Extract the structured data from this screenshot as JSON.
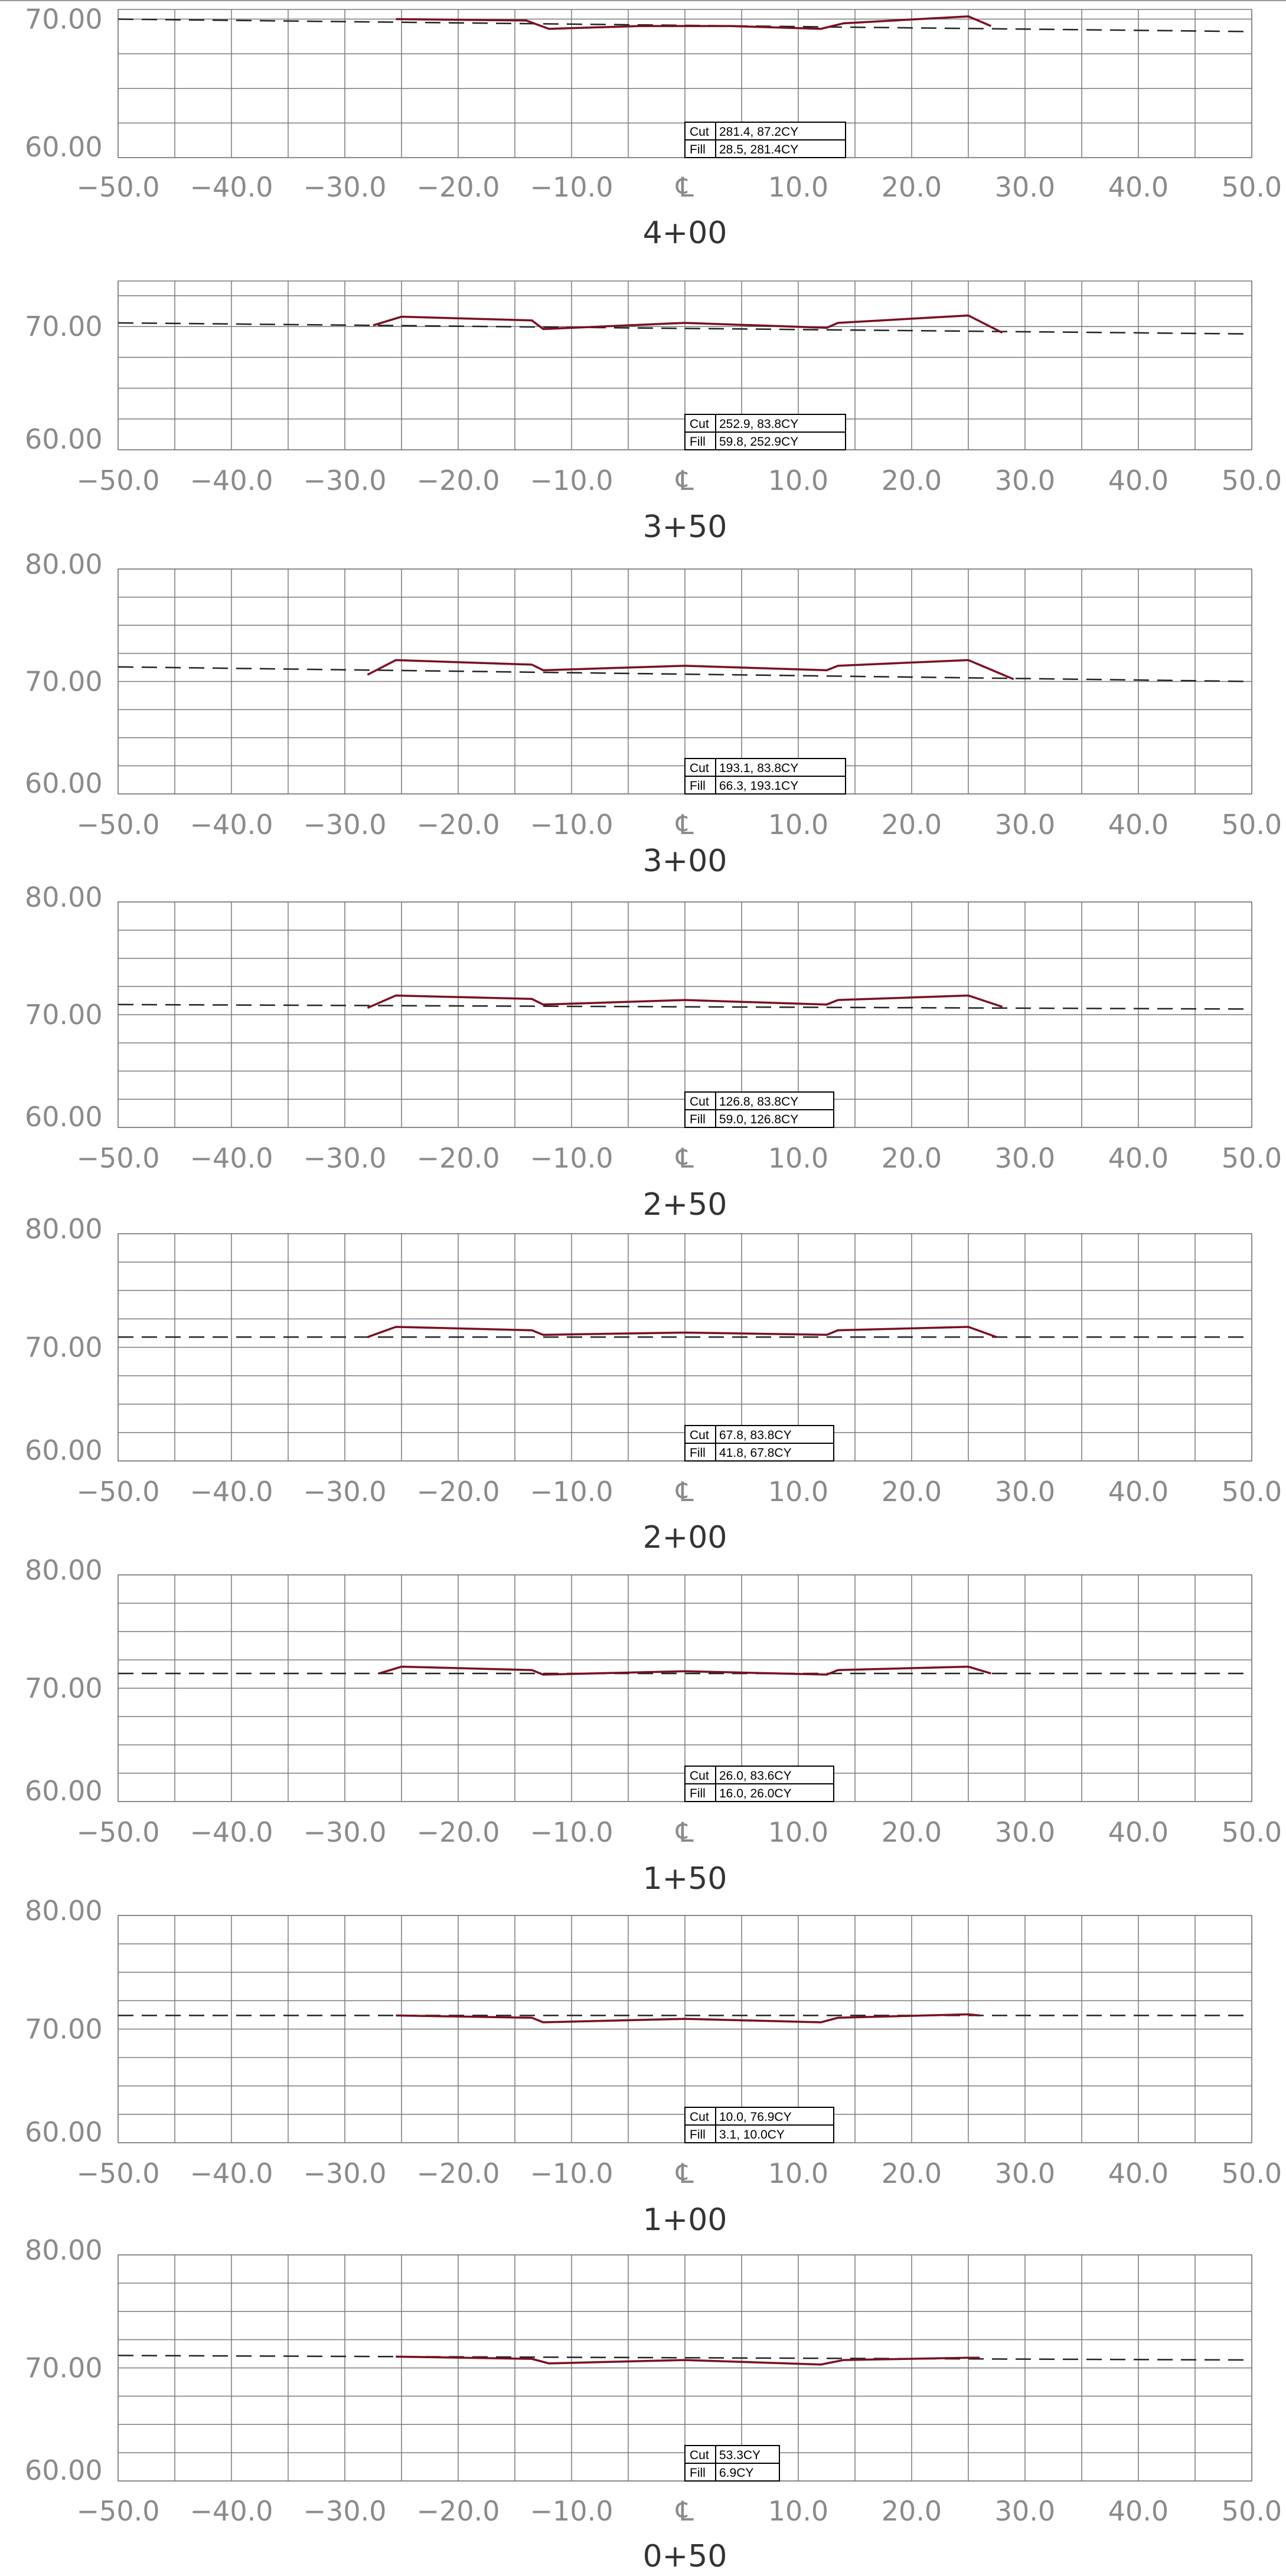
{
  "x_axis": {
    "ticks": [
      {
        "value": -50,
        "label": "−50.0"
      },
      {
        "value": -40,
        "label": "−40.0"
      },
      {
        "value": -30,
        "label": "−30.0"
      },
      {
        "value": -20,
        "label": "−20.0"
      },
      {
        "value": -10,
        "label": "−10.0"
      },
      {
        "value": 0,
        "label": "℄"
      },
      {
        "value": 10,
        "label": "10.0"
      },
      {
        "value": 20,
        "label": "20.0"
      },
      {
        "value": 30,
        "label": "30.0"
      },
      {
        "value": 40,
        "label": "40.0"
      },
      {
        "value": 50,
        "label": "50.0"
      }
    ]
  },
  "colors": {
    "grid": "#7a7a7a",
    "axis_label": "#8a8a8a",
    "design": "#7a1020",
    "existing": "#222222",
    "station_label": "#333333"
  },
  "sections": [
    {
      "station": "4+00",
      "y_ticks": [
        "70.00",
        "60.00"
      ],
      "y_range": [
        60,
        70.7
      ],
      "existing_ground": [
        [
          -50,
          70.0
        ],
        [
          50,
          69.1
        ]
      ],
      "design_profile": [
        [
          -25.5,
          70.0
        ],
        [
          -14,
          69.9
        ],
        [
          -12,
          69.3
        ],
        [
          -4,
          69.5
        ],
        [
          4,
          69.5
        ],
        [
          12,
          69.3
        ],
        [
          14,
          69.7
        ],
        [
          25,
          70.2
        ],
        [
          27,
          69.5
        ]
      ],
      "volumes": {
        "cut": {
          "label": "Cut",
          "value": "281.4, 87.2CY"
        },
        "fill": {
          "label": "Fill",
          "value": "28.5, 281.4CY"
        }
      }
    },
    {
      "station": "3+50",
      "y_ticks": [
        "70.00",
        "60.00"
      ],
      "y_range": [
        60,
        73.7
      ],
      "existing_ground": [
        [
          -50,
          70.3
        ],
        [
          50,
          69.4
        ]
      ],
      "design_profile": [
        [
          -27.5,
          70.1
        ],
        [
          -25,
          70.8
        ],
        [
          -13.5,
          70.5
        ],
        [
          -12.5,
          69.8
        ],
        [
          0,
          70.3
        ],
        [
          12.5,
          69.9
        ],
        [
          13.5,
          70.3
        ],
        [
          25,
          70.9
        ],
        [
          28,
          69.5
        ]
      ],
      "volumes": {
        "cut": {
          "label": "Cut",
          "value": "252.9, 83.8CY"
        },
        "fill": {
          "label": "Fill",
          "value": "59.8, 252.9CY"
        }
      }
    },
    {
      "station": "3+00",
      "y_ticks": [
        "80.00",
        "70.00",
        "60.00"
      ],
      "y_range": [
        60,
        80
      ],
      "existing_ground": [
        [
          -50,
          71.3
        ],
        [
          50,
          70.0
        ]
      ],
      "design_profile": [
        [
          -28,
          70.6
        ],
        [
          -25.5,
          71.9
        ],
        [
          -13.5,
          71.5
        ],
        [
          -12.5,
          71.0
        ],
        [
          0,
          71.4
        ],
        [
          12.5,
          71.0
        ],
        [
          13.5,
          71.4
        ],
        [
          25,
          71.9
        ],
        [
          29,
          70.2
        ]
      ],
      "volumes": {
        "cut": {
          "label": "Cut",
          "value": "193.1, 83.8CY"
        },
        "fill": {
          "label": "Fill",
          "value": "66.3, 193.1CY"
        }
      }
    },
    {
      "station": "2+50",
      "y_ticks": [
        "80.00",
        "70.00",
        "60.00"
      ],
      "y_range": [
        60,
        80
      ],
      "existing_ground": [
        [
          -50,
          70.9
        ],
        [
          50,
          70.5
        ]
      ],
      "design_profile": [
        [
          -28,
          70.6
        ],
        [
          -25.5,
          71.7
        ],
        [
          -13.5,
          71.4
        ],
        [
          -12.5,
          70.9
        ],
        [
          0,
          71.3
        ],
        [
          12.5,
          70.9
        ],
        [
          13.5,
          71.3
        ],
        [
          25,
          71.7
        ],
        [
          28,
          70.7
        ]
      ],
      "volumes": {
        "cut": {
          "label": "Cut",
          "value": "126.8, 83.8CY"
        },
        "fill": {
          "label": "Fill",
          "value": "59.0, 126.8CY"
        }
      }
    },
    {
      "station": "2+00",
      "y_ticks": [
        "80.00",
        "70.00",
        "60.00"
      ],
      "y_range": [
        60,
        80
      ],
      "existing_ground": [
        [
          -50,
          70.9
        ],
        [
          50,
          70.9
        ]
      ],
      "design_profile": [
        [
          -28,
          70.9
        ],
        [
          -25.5,
          71.8
        ],
        [
          -13.5,
          71.5
        ],
        [
          -12.5,
          71.1
        ],
        [
          0,
          71.3
        ],
        [
          12.5,
          71.1
        ],
        [
          13.5,
          71.5
        ],
        [
          25,
          71.8
        ],
        [
          27.5,
          70.9
        ]
      ],
      "volumes": {
        "cut": {
          "label": "Cut",
          "value": "67.8, 83.8CY"
        },
        "fill": {
          "label": "Fill",
          "value": "41.8, 67.8CY"
        }
      }
    },
    {
      "station": "1+50",
      "y_ticks": [
        "80.00",
        "70.00",
        "60.00"
      ],
      "y_range": [
        60,
        80
      ],
      "existing_ground": [
        [
          -50,
          71.3
        ],
        [
          50,
          71.3
        ]
      ],
      "design_profile": [
        [
          -27,
          71.3
        ],
        [
          -25,
          71.9
        ],
        [
          -13.5,
          71.6
        ],
        [
          -12.5,
          71.2
        ],
        [
          0,
          71.5
        ],
        [
          12.5,
          71.2
        ],
        [
          13.5,
          71.6
        ],
        [
          25,
          71.9
        ],
        [
          27,
          71.3
        ]
      ],
      "volumes": {
        "cut": {
          "label": "Cut",
          "value": "26.0, 83.6CY"
        },
        "fill": {
          "label": "Fill",
          "value": "16.0, 26.0CY"
        }
      }
    },
    {
      "station": "1+00",
      "y_ticks": [
        "80.00",
        "70.00",
        "60.00"
      ],
      "y_range": [
        60,
        80
      ],
      "existing_ground": [
        [
          -50,
          71.2
        ],
        [
          50,
          71.2
        ]
      ],
      "design_profile": [
        [
          -25.5,
          71.2
        ],
        [
          -13.5,
          71.0
        ],
        [
          -12.5,
          70.6
        ],
        [
          0,
          70.9
        ],
        [
          12,
          70.6
        ],
        [
          13.5,
          71.0
        ],
        [
          25,
          71.3
        ],
        [
          26,
          71.2
        ]
      ],
      "volumes": {
        "cut": {
          "label": "Cut",
          "value": "10.0, 76.9CY"
        },
        "fill": {
          "label": "Fill",
          "value": "3.1, 10.0CY"
        }
      }
    },
    {
      "station": "0+50",
      "y_ticks": [
        "80.00",
        "70.00",
        "60.00"
      ],
      "y_range": [
        60,
        80
      ],
      "existing_ground": [
        [
          -50,
          71.1
        ],
        [
          50,
          70.7
        ]
      ],
      "design_profile": [
        [
          -25.5,
          71.0
        ],
        [
          -13.5,
          70.8
        ],
        [
          -12,
          70.4
        ],
        [
          0,
          70.7
        ],
        [
          12,
          70.3
        ],
        [
          14,
          70.7
        ],
        [
          25,
          70.9
        ],
        [
          26,
          70.9
        ]
      ],
      "volumes": {
        "cut": {
          "label": "Cut",
          "value": "53.3CY"
        },
        "fill": {
          "label": "Fill",
          "value": "6.9CY"
        }
      }
    }
  ]
}
